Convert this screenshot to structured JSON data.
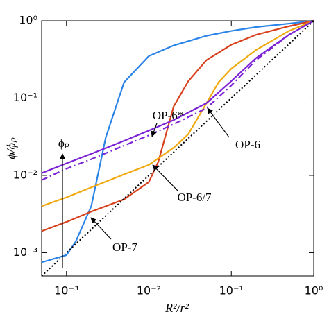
{
  "chart_data": {
    "type": "line",
    "xlabel": "R²/r²",
    "ylabel": "ϕ/ϕₚ",
    "xscale": "log",
    "yscale": "log",
    "xlim": [
      0.0005,
      1
    ],
    "ylim": [
      0.0005,
      1
    ],
    "xticks": [
      {
        "value": 0.001,
        "label": "10⁻³"
      },
      {
        "value": 0.01,
        "label": "10⁻²"
      },
      {
        "value": 0.1,
        "label": "10⁻¹"
      },
      {
        "value": 1,
        "label": "10⁰"
      }
    ],
    "yticks": [
      {
        "value": 0.001,
        "label": "10⁻³"
      },
      {
        "value": 0.01,
        "label": "10⁻²"
      },
      {
        "value": 0.1,
        "label": "10⁻¹"
      },
      {
        "value": 1,
        "label": "10⁰"
      }
    ],
    "series": [
      {
        "color": "#2a84e8",
        "style": "solid",
        "x": [
          0.0005,
          0.001,
          0.0013,
          0.002,
          0.003,
          0.005,
          0.01,
          0.02,
          0.05,
          0.1,
          0.2,
          0.5,
          1
        ],
        "values": [
          0.00075,
          0.00093,
          0.0014,
          0.004,
          0.031,
          0.16,
          0.35,
          0.48,
          0.64,
          0.74,
          0.83,
          0.92,
          1
        ]
      },
      {
        "color": "#d8401c",
        "style": "solid",
        "x": [
          0.0005,
          0.001,
          0.002,
          0.005,
          0.01,
          0.013,
          0.02,
          0.03,
          0.05,
          0.1,
          0.2,
          0.5,
          1
        ],
        "values": [
          0.0019,
          0.0025,
          0.0034,
          0.0049,
          0.0082,
          0.015,
          0.078,
          0.165,
          0.31,
          0.49,
          0.66,
          0.85,
          1
        ]
      },
      {
        "color": "#f0a80c",
        "style": "solid",
        "x": [
          0.0005,
          0.001,
          0.002,
          0.005,
          0.01,
          0.02,
          0.03,
          0.05,
          0.07,
          0.1,
          0.2,
          0.5,
          1
        ],
        "values": [
          0.004,
          0.0052,
          0.007,
          0.0103,
          0.0137,
          0.0228,
          0.034,
          0.086,
          0.16,
          0.24,
          0.42,
          0.74,
          1
        ]
      },
      {
        "color": "#7b22d6",
        "style": "solid",
        "x": [
          0.0005,
          0.001,
          0.002,
          0.005,
          0.01,
          0.02,
          0.05,
          0.1,
          0.2,
          0.5,
          1
        ],
        "values": [
          0.0107,
          0.0143,
          0.019,
          0.028,
          0.038,
          0.052,
          0.086,
          0.166,
          0.33,
          0.66,
          1
        ]
      },
      {
        "color": "#7b22d6",
        "style": "dash-dot",
        "x": [
          0.0005,
          0.001,
          0.002,
          0.005,
          0.01,
          0.02,
          0.05,
          0.1,
          0.2,
          0.5,
          1
        ],
        "values": [
          0.0087,
          0.0122,
          0.0162,
          0.0243,
          0.033,
          0.046,
          0.074,
          0.146,
          0.31,
          0.66,
          1
        ]
      },
      {
        "color": "#000000",
        "style": "dotted",
        "x": [
          0.0005,
          1
        ],
        "values": [
          0.0005,
          1
        ]
      }
    ],
    "annotations": [
      "OP-6*",
      "OP-6",
      "OP-6/7",
      "OP-7",
      "ϕₚ"
    ]
  }
}
